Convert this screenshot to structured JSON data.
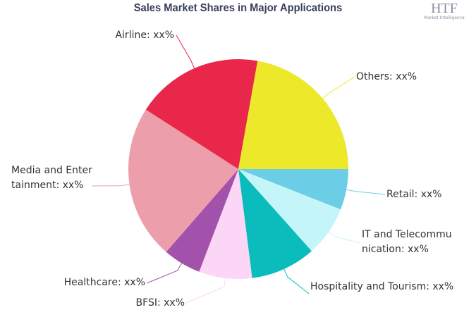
{
  "chart_data": {
    "type": "pie",
    "title": "Sales Market Shares in Major Applications",
    "logo": {
      "name": "HTF",
      "tagline": "Market Intelligence"
    },
    "categories": [
      "Retail",
      "IT and Telecommunication",
      "Hospitality and Tourism",
      "BFSI",
      "Healthcare",
      "Media and Entertainment",
      "Airline",
      "Others"
    ],
    "values": [
      6,
      7.4,
      9.6,
      7.8,
      5.6,
      22.7,
      18.7,
      22.2
    ],
    "value_labels": [
      "Retail: xx%",
      "IT and Telecommunication: xx%",
      "Hospitality and Tourism: xx%",
      "BFSI: xx%",
      "Healthcare: xx%",
      "Media and Entertainment: xx%",
      "Airline: xx%",
      "Others: xx%"
    ],
    "colors": [
      "#6ccde6",
      "#c4f5f8",
      "#0bbcbc",
      "#fbd6f7",
      "#a352ac",
      "#ec9fab",
      "#e8274a",
      "#ede82a"
    ]
  }
}
